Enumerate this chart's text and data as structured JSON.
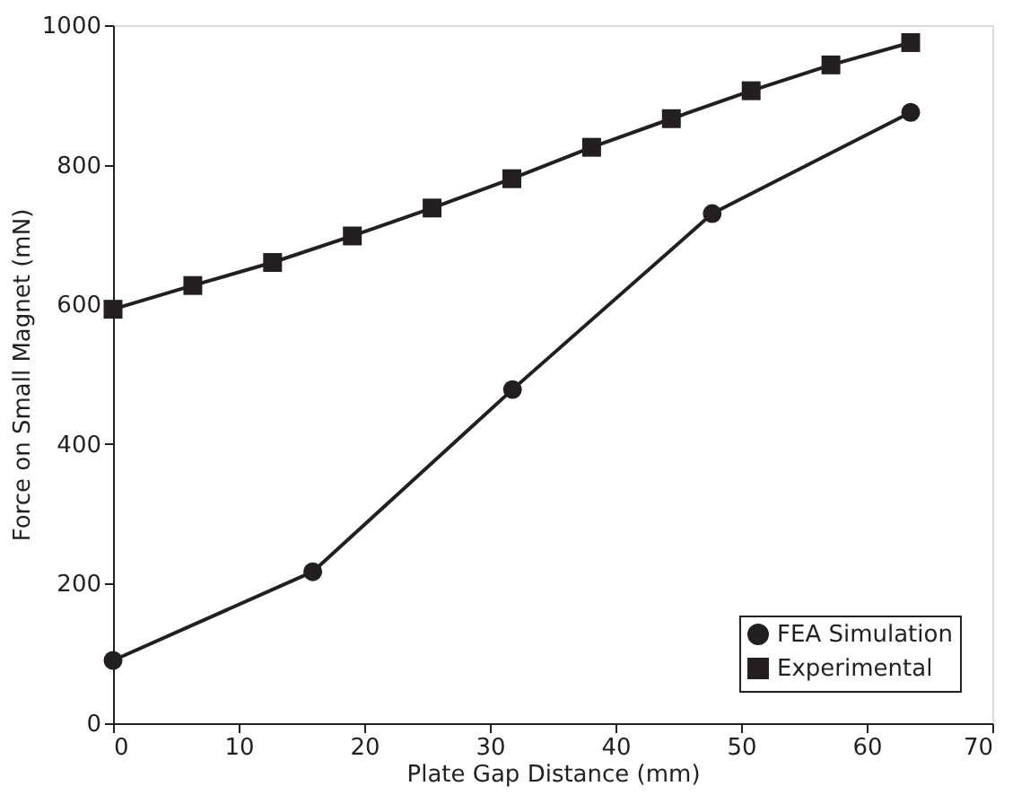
{
  "chart_data": {
    "type": "line",
    "xlabel": "Plate Gap Distance (mm)",
    "ylabel": "Force on Small Magnet (mN)",
    "xlim": [
      0,
      70
    ],
    "xticks": [
      0,
      10,
      20,
      30,
      40,
      50,
      60,
      70
    ],
    "ylim": [
      0,
      1000
    ],
    "yticks": [
      0,
      200,
      400,
      600,
      800,
      1000
    ],
    "grid": false,
    "legend": "bottom right",
    "series": [
      {
        "name": "FEA Simulation",
        "color": "#231f20",
        "marker": "circle",
        "x": [
          0,
          15.9,
          31.8,
          47.7,
          63.5
        ],
        "values": [
          90,
          217,
          478,
          730,
          875
        ]
      },
      {
        "name": "Experimental",
        "color": "#231f20",
        "marker": "square",
        "x": [
          0,
          6.35,
          12.7,
          19.05,
          25.4,
          31.75,
          38.1,
          44.45,
          50.8,
          57.15,
          63.5
        ],
        "values": [
          593,
          627,
          660,
          698,
          738,
          780,
          825,
          866,
          906,
          943,
          975
        ]
      }
    ]
  }
}
